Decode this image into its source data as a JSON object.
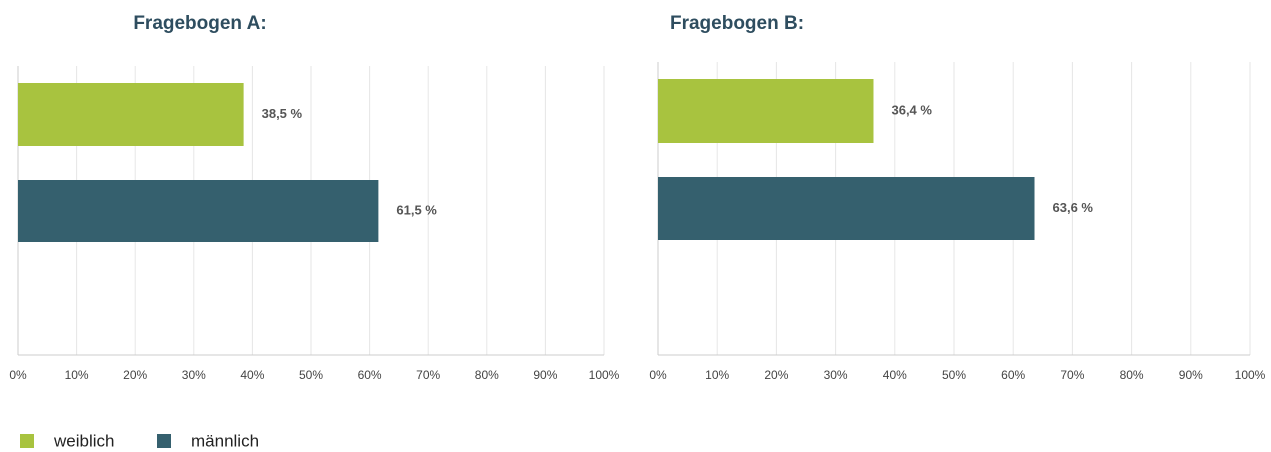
{
  "chart_data": [
    {
      "type": "bar",
      "orientation": "horizontal",
      "title": "Fragebogen A:",
      "series": [
        {
          "name": "weiblich",
          "color": "#a8c33f",
          "values": [
            38.5
          ],
          "value_labels": [
            "38,5 %"
          ]
        },
        {
          "name": "männlich",
          "color": "#35606e",
          "values": [
            61.5
          ],
          "value_labels": [
            "61,5 %"
          ]
        }
      ],
      "xlim": [
        0,
        100
      ],
      "xticks": [
        {
          "value": 0,
          "label": "0%"
        },
        {
          "value": 10,
          "label": "10%"
        },
        {
          "value": 20,
          "label": "20%"
        },
        {
          "value": 30,
          "label": "30%"
        },
        {
          "value": 40,
          "label": "40%"
        },
        {
          "value": 50,
          "label": "50%"
        },
        {
          "value": 60,
          "label": "60%"
        },
        {
          "value": 70,
          "label": "70%"
        },
        {
          "value": 80,
          "label": "80%"
        },
        {
          "value": 90,
          "label": "90%"
        },
        {
          "value": 100,
          "label": "100%"
        }
      ],
      "grid": true,
      "legend": "bottom-left"
    },
    {
      "type": "bar",
      "orientation": "horizontal",
      "title": "Fragebogen B:",
      "series": [
        {
          "name": "weiblich",
          "color": "#a8c33f",
          "values": [
            36.4
          ],
          "value_labels": [
            "36,4 %"
          ]
        },
        {
          "name": "männlich",
          "color": "#35606e",
          "values": [
            63.6
          ],
          "value_labels": [
            "63,6 %"
          ]
        }
      ],
      "xlim": [
        0,
        100
      ],
      "xticks": [
        {
          "value": 0,
          "label": "0%"
        },
        {
          "value": 10,
          "label": "10%"
        },
        {
          "value": 20,
          "label": "20%"
        },
        {
          "value": 30,
          "label": "30%"
        },
        {
          "value": 40,
          "label": "40%"
        },
        {
          "value": 50,
          "label": "50%"
        },
        {
          "value": 60,
          "label": "60%"
        },
        {
          "value": 70,
          "label": "70%"
        },
        {
          "value": 80,
          "label": "80%"
        },
        {
          "value": 90,
          "label": "90%"
        },
        {
          "value": 100,
          "label": "100%"
        }
      ],
      "grid": true,
      "legend": "bottom-left"
    }
  ]
}
